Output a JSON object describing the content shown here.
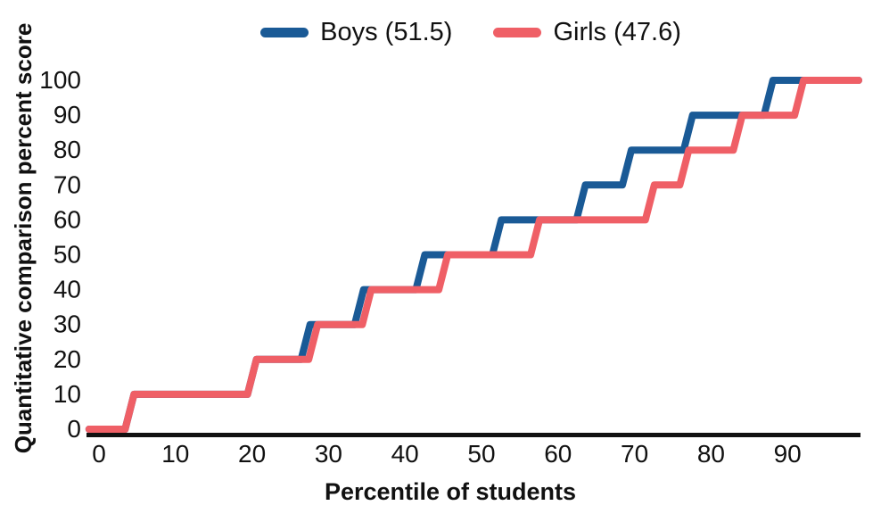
{
  "axes": {
    "x_title": "Percentile of students",
    "y_title": "Quantitative comparison percent score"
  },
  "colors": {
    "boys_line": "#1a5a96",
    "girls_line": "#ef5f66",
    "axis_and_text": "#111111",
    "background": "#ffffff"
  },
  "chart_data": {
    "type": "line",
    "subtype": "step-percentile-curve",
    "title": "",
    "xlabel": "Percentile of students",
    "ylabel": "Quantitative comparison percent score",
    "xlim": [
      0,
      100
    ],
    "ylim": [
      0,
      100
    ],
    "x_tick_values": [
      0,
      10,
      20,
      30,
      40,
      50,
      60,
      70,
      80,
      90
    ],
    "y_tick_values": [
      0,
      10,
      20,
      30,
      40,
      50,
      60,
      70,
      80,
      90,
      100
    ],
    "grid": false,
    "legend_position": "top-center",
    "score_levels": [
      0,
      10,
      20,
      30,
      40,
      50,
      60,
      70,
      80,
      90,
      100
    ],
    "x_start": -1.3,
    "x_end": 99.3,
    "series": [
      {
        "name": "Boys",
        "legend_label": "Boys (51.5)",
        "mean_score": 51.5,
        "color": "#1a5a96",
        "rise_at_percentile": [
          4,
          20,
          27,
          34,
          42,
          52,
          63,
          69,
          77,
          87.5
        ]
      },
      {
        "name": "Girls",
        "legend_label": "Girls (47.6)",
        "mean_score": 47.6,
        "color": "#ef5f66",
        "rise_at_percentile": [
          4,
          20,
          28,
          35,
          45,
          57,
          72,
          76.5,
          83.5,
          91.5
        ]
      }
    ]
  }
}
